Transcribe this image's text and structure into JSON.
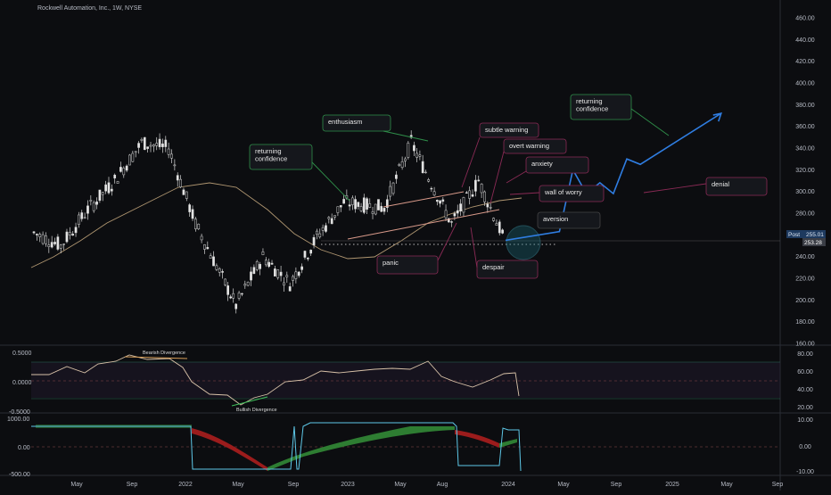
{
  "header": {
    "title": "Rockwell Automation, Inc., 1W, NYSE"
  },
  "price_axis": {
    "ticks": [
      "460.00",
      "440.00",
      "420.00",
      "400.00",
      "380.00",
      "360.00",
      "340.00",
      "320.00",
      "300.00",
      "280.00",
      "260.00",
      "240.00",
      "220.00",
      "200.00",
      "180.00",
      "160.00"
    ],
    "last_label": "Post",
    "last_price": "255.01",
    "current_price": "253.28"
  },
  "osc1_axis": {
    "left_ticks": [
      "0.5000",
      "0.0000",
      "-0.5000"
    ],
    "right_ticks": [
      "80.00",
      "60.00",
      "40.00",
      "20.00"
    ],
    "bearish_label": "Bearish Divergence",
    "bullish_label": "Bullish Divergence"
  },
  "osc2_axis": {
    "left_ticks": [
      "1000.00",
      "0.00",
      "-500.00"
    ],
    "right_ticks": [
      "10.00",
      "0.00",
      "-10.00"
    ]
  },
  "time_axis": {
    "ticks": [
      "May",
      "Sep",
      "2022",
      "May",
      "Sep",
      "2023",
      "May",
      "Aug",
      "2024",
      "May",
      "Sep",
      "2025",
      "May",
      "Sep"
    ]
  },
  "annotations": {
    "enthusiasm": "enthusiasm",
    "returning_confidence_1": "returning\nconfidence",
    "subtle_warning": "subtle warning",
    "overt_warning": "overt warning",
    "anxiety": "anxiety",
    "wall_of_worry": "wall of worry",
    "aversion": "aversion",
    "panic": "panic",
    "despair": "despair",
    "returning_confidence_2": "returning\nconfidence",
    "denial": "denial"
  },
  "colors": {
    "background": "#0c0d10",
    "up_candle": "#e6e6e6",
    "ma_line": "#d9b98a",
    "projection": "#2f7de1",
    "osc_line": "#d8c2a8",
    "bear_band": "#9b1c1c",
    "bull_band": "#2e7d32",
    "cyan_line": "#5ec8e8"
  },
  "chart_data": {
    "type": "line",
    "title": "Rockwell Automation, Inc., 1W, NYSE",
    "ylim": [
      160,
      460
    ],
    "price_path": [
      {
        "x": "2021-03",
        "y": 262
      },
      {
        "x": "2021-05",
        "y": 250
      },
      {
        "x": "2021-07",
        "y": 283
      },
      {
        "x": "2021-09",
        "y": 310
      },
      {
        "x": "2021-11",
        "y": 345
      },
      {
        "x": "2022-01",
        "y": 340
      },
      {
        "x": "2022-03",
        "y": 270
      },
      {
        "x": "2022-05",
        "y": 220
      },
      {
        "x": "2022-06",
        "y": 195
      },
      {
        "x": "2022-08",
        "y": 240
      },
      {
        "x": "2022-10",
        "y": 215
      },
      {
        "x": "2022-12",
        "y": 258
      },
      {
        "x": "2023-02",
        "y": 290
      },
      {
        "x": "2023-05",
        "y": 285
      },
      {
        "x": "2023-07",
        "y": 345
      },
      {
        "x": "2023-10",
        "y": 270
      },
      {
        "x": "2023-12",
        "y": 310
      },
      {
        "x": "2024-02",
        "y": 253
      }
    ],
    "projection_path": [
      {
        "x": "2024-02",
        "y": 255
      },
      {
        "x": "2024-06",
        "y": 263
      },
      {
        "x": "2024-07",
        "y": 320
      },
      {
        "x": "2024-08",
        "y": 298
      },
      {
        "x": "2024-09",
        "y": 308
      },
      {
        "x": "2024-10",
        "y": 298
      },
      {
        "x": "2024-11",
        "y": 330
      },
      {
        "x": "2024-12",
        "y": 325
      },
      {
        "x": "2025-06",
        "y": 372
      }
    ],
    "last_price": 253.28
  }
}
